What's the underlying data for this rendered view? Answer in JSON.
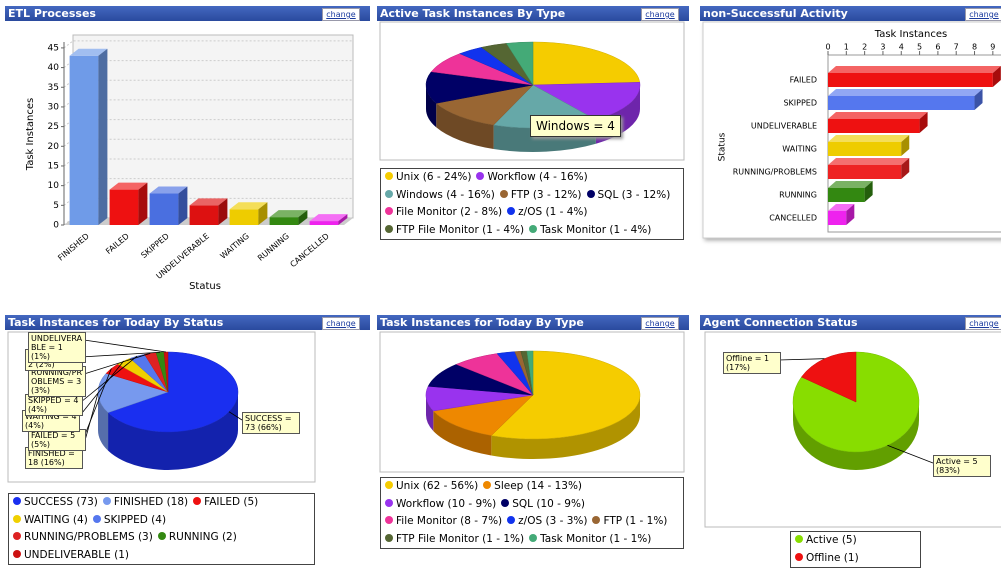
{
  "button_label": "change",
  "chart_data": [
    {
      "type": "bar",
      "title": "ETL Processes",
      "categories": [
        "FINISHED",
        "FAILED",
        "SKIPPED",
        "UNDELIVERABLE",
        "WAITING",
        "RUNNING",
        "CANCELLED"
      ],
      "values": [
        43,
        9,
        8,
        5,
        4,
        2,
        1
      ],
      "colors": [
        "#6f9be8",
        "#ee1111",
        "#4a6fe0",
        "#dd1111",
        "#eecc00",
        "#338811",
        "#ee22ee"
      ],
      "ylim": [
        0,
        46.5
      ],
      "yticks": [
        0,
        5,
        10,
        15,
        20,
        25,
        30,
        35,
        40,
        45
      ],
      "ylabel": "Task Instances",
      "xlabel": "Status",
      "grid": true
    },
    {
      "type": "pie",
      "title": "Active Task Instances By Type",
      "categories": [
        "Unix",
        "Workflow",
        "Windows",
        "FTP",
        "SQL",
        "File Monitor",
        "z/OS",
        "FTP File Monitor",
        "Task Monitor"
      ],
      "values": [
        6,
        4,
        4,
        3,
        3,
        2,
        1,
        1,
        1
      ],
      "legend_labels": [
        "Unix (6 - 24%)",
        "Workflow (4 - 16%)",
        "Windows (4 - 16%)",
        "FTP (3 - 12%)",
        "SQL (3 - 12%)",
        "File Monitor (2 - 8%)",
        "z/OS (1 - 4%)",
        "FTP File Monitor (1 - 4%)",
        "Task Monitor (1 - 4%)"
      ],
      "colors": [
        "#f5cc00",
        "#9933ee",
        "#66a8a8",
        "#996633",
        "#000066",
        "#ee3399",
        "#1133ee",
        "#556633",
        "#44aa77"
      ],
      "tooltip": "Windows = 4"
    },
    {
      "type": "bar",
      "horizontal": true,
      "title": "non-Successful Activity",
      "categories": [
        "FAILED",
        "SKIPPED",
        "UNDELIVERABLE",
        "WAITING",
        "RUNNING/PROBLEMS",
        "RUNNING",
        "CANCELLED"
      ],
      "values": [
        9,
        8,
        5,
        4,
        4,
        2,
        1
      ],
      "colors": [
        "#ee1111",
        "#5577ee",
        "#ee1111",
        "#eecc00",
        "#ee2222",
        "#338811",
        "#ee22ee"
      ],
      "xlim": [
        0,
        9.5
      ],
      "xticks": [
        0,
        1,
        2,
        3,
        4,
        5,
        6,
        7,
        8,
        9
      ],
      "xlabel": "Task Instances",
      "ylabel": "Status"
    },
    {
      "type": "pie",
      "title": "Task Instances for Today By Status",
      "categories": [
        "SUCCESS",
        "FINISHED",
        "FAILED",
        "WAITING",
        "SKIPPED",
        "RUNNING/PROBLEMS",
        "RUNNING",
        "UNDELIVERABLE"
      ],
      "values": [
        73,
        18,
        5,
        4,
        4,
        3,
        2,
        1
      ],
      "legend_labels": [
        "SUCCESS (73)",
        "FINISHED (18)",
        "FAILED (5)",
        "WAITING (4)",
        "SKIPPED (4)",
        "RUNNING/PROBLEMS (3)",
        "RUNNING (2)",
        "UNDELIVERABLE (1)"
      ],
      "callouts": [
        "SUCCESS = 73 (66%)",
        "FINISHED = 18 (16%)",
        "FAILED = 5 (5%)",
        "WAITING = 4 (4%)",
        "SKIPPED = 4 (4%)",
        "RUNNING/PROBLEMS = 3 (3%)",
        "RUNNING = 2 (2%)",
        "UNDELIVERABLE = 1 (1%)"
      ],
      "colors": [
        "#1a2ff0",
        "#7799ee",
        "#ee1111",
        "#f0d000",
        "#5577ee",
        "#dd2222",
        "#338811",
        "#cc1111"
      ]
    },
    {
      "type": "pie",
      "title": "Task Instances for Today By Type",
      "categories": [
        "Unix",
        "Sleep",
        "Workflow",
        "SQL",
        "File Monitor",
        "z/OS",
        "FTP",
        "FTP File Monitor",
        "Task Monitor"
      ],
      "values": [
        62,
        14,
        10,
        10,
        8,
        3,
        1,
        1,
        1
      ],
      "legend_labels": [
        "Unix (62 - 56%)",
        "Sleep (14 - 13%)",
        "Workflow (10 - 9%)",
        "SQL (10 - 9%)",
        "File Monitor (8 - 7%)",
        "z/OS (3 - 3%)",
        "FTP (1 - 1%)",
        "FTP File Monitor (1 - 1%)",
        "Task Monitor (1 - 1%)"
      ],
      "colors": [
        "#f5cc00",
        "#ee8800",
        "#9933ee",
        "#000066",
        "#ee3399",
        "#1133ee",
        "#996633",
        "#556633",
        "#44aa77"
      ]
    },
    {
      "type": "pie",
      "title": "Agent Connection Status",
      "categories": [
        "Active",
        "Offline"
      ],
      "values": [
        5,
        1
      ],
      "legend_labels": [
        "Active (5)",
        "Offline (1)"
      ],
      "callouts": [
        "Active = 5 (83%)",
        "Offline = 1 (17%)"
      ],
      "colors": [
        "#88dd00",
        "#ee1111"
      ]
    }
  ]
}
